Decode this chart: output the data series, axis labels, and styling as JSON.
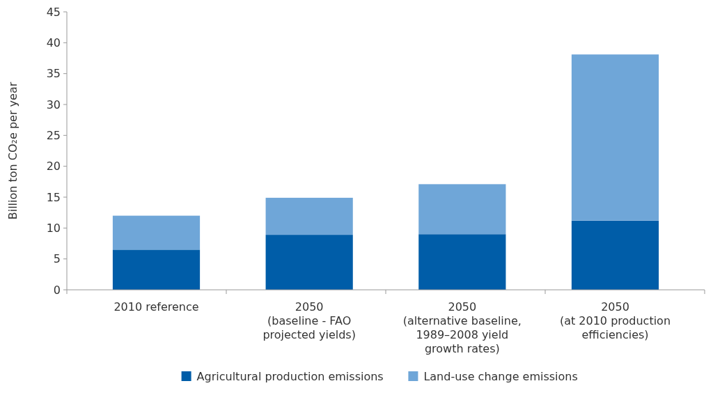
{
  "chart_data": {
    "type": "bar",
    "stacked": true,
    "ylabel": "Billion ton CO₂e per year",
    "categories": [
      "2010 reference",
      "2050\n(baseline - FAO\nprojected yields)",
      "2050\n(alternative baseline,\n1989–2008 yield\ngrowth rates)",
      "2050\n(at 2010 production\nefficiencies)"
    ],
    "series": [
      {
        "name": "Agricultural production emissions",
        "color": "#005da8",
        "values": [
          6.5,
          8.9,
          9.0,
          11.2
        ]
      },
      {
        "name": "Land-use change emissions",
        "color": "#6fa6d8",
        "values": [
          5.5,
          6.0,
          8.1,
          26.9
        ]
      }
    ],
    "ylim": [
      0,
      45
    ],
    "yticks": [
      0,
      5,
      10,
      15,
      20,
      25,
      30,
      35,
      40,
      45
    ],
    "grid": false,
    "legend": "bottom"
  }
}
